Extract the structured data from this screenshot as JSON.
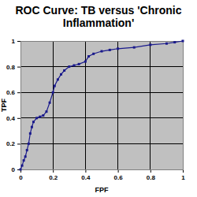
{
  "chart_data": {
    "type": "line",
    "title": "ROC Curve: TB versus 'Chronic Inflammation'",
    "x_label": "FPF",
    "y_label": "TPF",
    "x": [
      0,
      0.01,
      0.02,
      0.03,
      0.04,
      0.05,
      0.06,
      0.07,
      0.08,
      0.1,
      0.12,
      0.14,
      0.16,
      0.18,
      0.2,
      0.21,
      0.23,
      0.25,
      0.27,
      0.3,
      0.33,
      0.36,
      0.4,
      0.42,
      0.45,
      0.5,
      0.55,
      0.6,
      0.7,
      0.8,
      0.9,
      0.95,
      1
    ],
    "values": [
      0,
      0.03,
      0.07,
      0.1,
      0.15,
      0.2,
      0.28,
      0.33,
      0.37,
      0.4,
      0.41,
      0.42,
      0.45,
      0.52,
      0.6,
      0.65,
      0.7,
      0.74,
      0.77,
      0.8,
      0.81,
      0.82,
      0.84,
      0.88,
      0.9,
      0.92,
      0.93,
      0.94,
      0.95,
      0.97,
      0.98,
      0.99,
      1
    ],
    "color": "#1a1a8c",
    "marker": "square",
    "line_style": "solid",
    "xlim": [
      0,
      1
    ],
    "ylim": [
      0,
      1
    ],
    "xticks": [
      0,
      0.2,
      0.4,
      0.6,
      0.8,
      1
    ],
    "yticks": [
      0,
      0.2,
      0.4,
      0.6,
      0.8,
      1
    ],
    "grid": true
  }
}
